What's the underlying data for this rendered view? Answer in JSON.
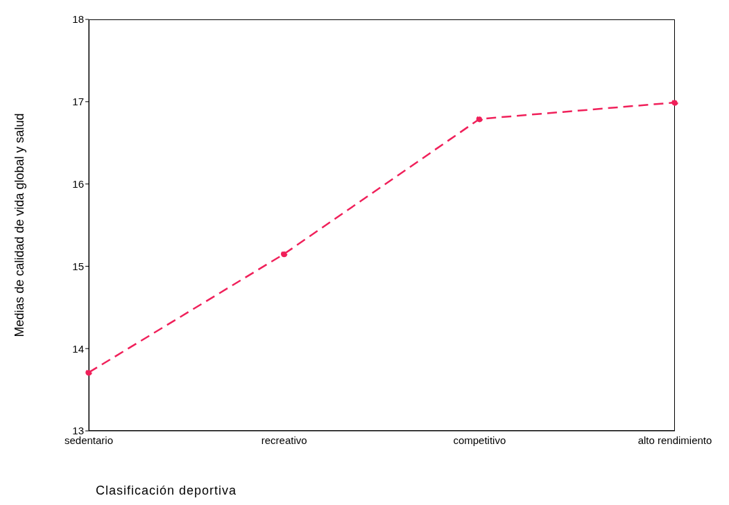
{
  "chart_data": {
    "type": "line",
    "xlabel": "Clasificación deportiva",
    "ylabel": "Medias de calidad de vida global y salud",
    "categories": [
      "sedentario",
      "recreativo",
      "competitivo",
      "alto rendimiento"
    ],
    "series": [
      {
        "color": "#f0205a",
        "values": [
          13.71,
          15.15,
          16.79,
          16.99
        ]
      }
    ],
    "ylim": [
      13,
      18
    ],
    "yticks": [
      13,
      14,
      15,
      16,
      17,
      18
    ],
    "grid": false,
    "legend": false,
    "marker": "circle",
    "line_style": "dashed"
  }
}
